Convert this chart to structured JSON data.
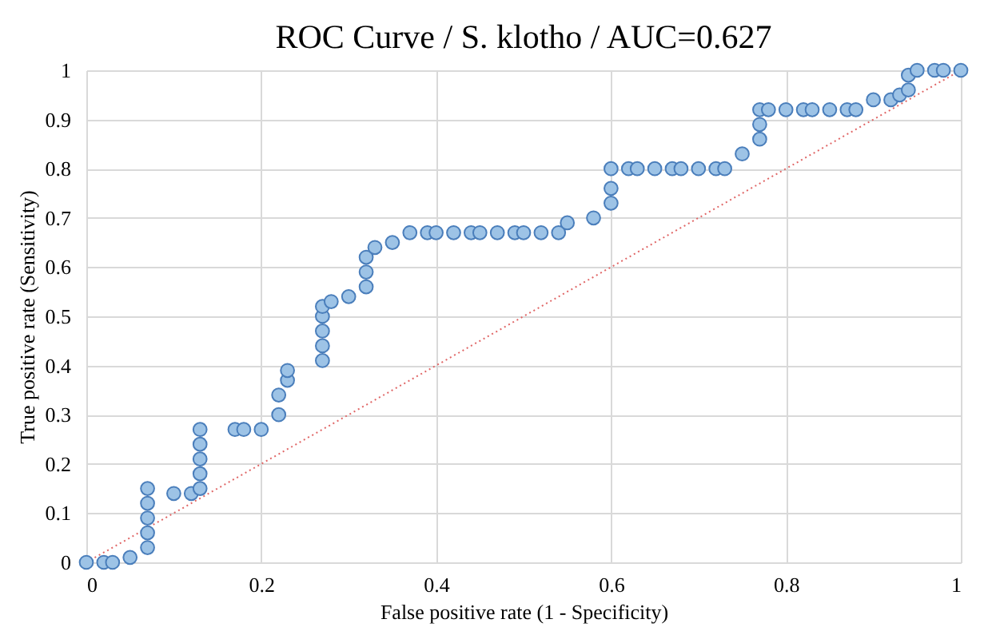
{
  "chart_data": {
    "type": "scatter",
    "title": "ROC Curve  / S. klotho  / AUC=0.627",
    "xlabel": "False positive rate (1 - Specificity)",
    "ylabel": "True positive rate (Sensitivity)",
    "xlim": [
      0,
      1
    ],
    "ylim": [
      0,
      1
    ],
    "xticks": [
      0,
      0.2,
      0.4,
      0.6,
      0.8,
      1
    ],
    "yticks": [
      0,
      0.1,
      0.2,
      0.3,
      0.4,
      0.5,
      0.6,
      0.7,
      0.8,
      0.9,
      1
    ],
    "grid": true,
    "series": [
      {
        "color": "#9dc3e6",
        "marker": "circle",
        "x": [
          0,
          0.02,
          0.03,
          0.05,
          0.07,
          0.07,
          0.07,
          0.07,
          0.07,
          0.1,
          0.12,
          0.13,
          0.13,
          0.13,
          0.13,
          0.13,
          0.17,
          0.18,
          0.2,
          0.22,
          0.22,
          0.23,
          0.23,
          0.27,
          0.27,
          0.27,
          0.27,
          0.27,
          0.28,
          0.3,
          0.32,
          0.32,
          0.32,
          0.33,
          0.35,
          0.37,
          0.39,
          0.4,
          0.42,
          0.44,
          0.45,
          0.47,
          0.49,
          0.5,
          0.52,
          0.54,
          0.55,
          0.58,
          0.6,
          0.6,
          0.6,
          0.62,
          0.63,
          0.65,
          0.67,
          0.68,
          0.7,
          0.72,
          0.73,
          0.75,
          0.77,
          0.77,
          0.77,
          0.78,
          0.8,
          0.82,
          0.83,
          0.85,
          0.87,
          0.88,
          0.9,
          0.92,
          0.93,
          0.94,
          0.94,
          0.95,
          0.97,
          0.98,
          1
        ],
        "values": [
          0,
          0,
          0,
          0.01,
          0.03,
          0.06,
          0.09,
          0.12,
          0.15,
          0.14,
          0.14,
          0.15,
          0.18,
          0.21,
          0.24,
          0.27,
          0.27,
          0.27,
          0.27,
          0.3,
          0.34,
          0.37,
          0.39,
          0.41,
          0.44,
          0.47,
          0.5,
          0.52,
          0.53,
          0.54,
          0.56,
          0.59,
          0.62,
          0.64,
          0.65,
          0.67,
          0.67,
          0.67,
          0.67,
          0.67,
          0.67,
          0.67,
          0.67,
          0.67,
          0.67,
          0.67,
          0.69,
          0.7,
          0.73,
          0.76,
          0.8,
          0.8,
          0.8,
          0.8,
          0.8,
          0.8,
          0.8,
          0.8,
          0.8,
          0.83,
          0.86,
          0.89,
          0.92,
          0.92,
          0.92,
          0.92,
          0.92,
          0.92,
          0.92,
          0.92,
          0.94,
          0.94,
          0.95,
          0.96,
          0.99,
          1,
          1,
          1,
          1
        ]
      },
      {
        "type": "line",
        "color": "#e06666",
        "line_style": "dotted",
        "x": [
          0,
          1
        ],
        "values": [
          0,
          1
        ]
      }
    ]
  }
}
